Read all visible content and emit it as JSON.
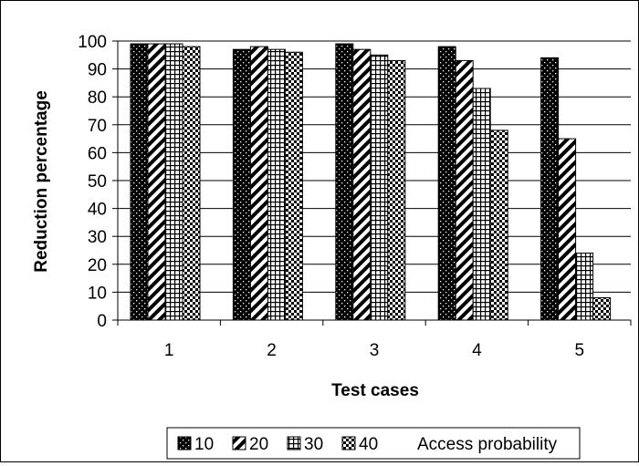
{
  "chart_data": {
    "type": "bar",
    "xlabel": "Test cases",
    "ylabel": "Reduction percentage",
    "categories": [
      "1",
      "2",
      "3",
      "4",
      "5"
    ],
    "ylim": [
      0,
      100
    ],
    "yticks": [
      0,
      10,
      20,
      30,
      40,
      50,
      60,
      70,
      80,
      90,
      100
    ],
    "grid": "horizontal",
    "legend_position": "bottom",
    "legend_suffix": "Access probability",
    "series": [
      {
        "name": "10",
        "pattern": "dots",
        "values": [
          99,
          97,
          99,
          98,
          94
        ]
      },
      {
        "name": "20",
        "pattern": "diagonal",
        "values": [
          99,
          98,
          97,
          93,
          65
        ]
      },
      {
        "name": "30",
        "pattern": "grid",
        "values": [
          99,
          97,
          95,
          83,
          24
        ]
      },
      {
        "name": "40",
        "pattern": "checker",
        "values": [
          98,
          96,
          93,
          68,
          8
        ]
      }
    ]
  }
}
